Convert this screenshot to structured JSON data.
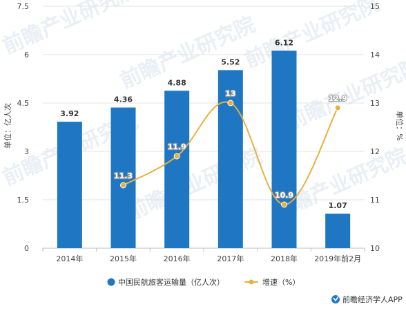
{
  "chart_data": {
    "type": "bar",
    "categories": [
      "2014年",
      "2015年",
      "2016年",
      "2017年",
      "2018年",
      "2019年前2月"
    ],
    "series": [
      {
        "name": "中国民航旅客运输量（亿人次）",
        "type": "bar",
        "axis": "left",
        "color": "#1f77c4",
        "values": [
          3.92,
          4.36,
          4.88,
          5.52,
          6.12,
          1.07
        ],
        "labels": [
          "3.92",
          "4.36",
          "4.88",
          "5.52",
          "6.12",
          "1.07"
        ]
      },
      {
        "name": "增速（%）",
        "type": "line",
        "axis": "right",
        "color": "#e8b13a",
        "values": [
          null,
          11.3,
          11.9,
          13,
          10.9,
          12.9
        ],
        "labels": [
          "",
          "11.3",
          "11.9",
          "13",
          "10.9",
          "12.9"
        ]
      }
    ],
    "ylabel": "单位：亿人次",
    "y2label": "单位：%",
    "ylim": [
      0,
      7.5
    ],
    "y2lim": [
      10,
      15
    ],
    "yticks": [
      "0",
      "1.5",
      "3",
      "4.5",
      "6",
      "7.5"
    ],
    "y2ticks": [
      "10",
      "11",
      "12",
      "13",
      "14",
      "15"
    ],
    "grid": "horizontal",
    "legend": "bottom-center"
  },
  "legend": {
    "bar_label": "中国民航旅客运输量（亿人次）",
    "line_label": "增速（%）"
  },
  "watermark": "前瞻产业研究院",
  "source": {
    "text": "前瞻经济学人APP",
    "icon": "qianzhan-logo-icon"
  }
}
